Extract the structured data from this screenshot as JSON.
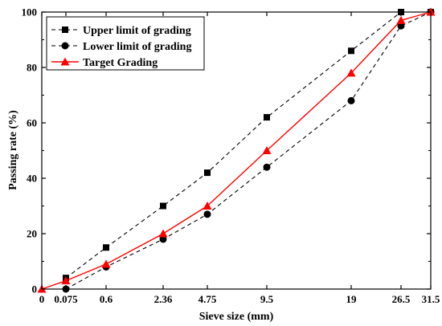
{
  "chart_data": {
    "type": "line",
    "xlabel": "Sieve size (mm)",
    "ylabel": "Passing rate (%)",
    "ylim": [
      0,
      100
    ],
    "yticks": [
      0,
      20,
      40,
      60,
      80,
      100
    ],
    "x": [
      "0",
      "0.075",
      "0.6",
      "2.36",
      "4.75",
      "9.5",
      "19",
      "26.5",
      "31.5"
    ],
    "grid": false,
    "legend_position": "top-left",
    "series": [
      {
        "name": "Upper limit of grading",
        "values": [
          null,
          4,
          15,
          30,
          42,
          62,
          86,
          100,
          100
        ],
        "color": "#000000",
        "line": "dashed",
        "marker": "square"
      },
      {
        "name": "Lower limit of grading",
        "values": [
          null,
          0,
          8,
          18,
          27,
          44,
          68,
          95,
          100
        ],
        "color": "#000000",
        "line": "dashed",
        "marker": "circle"
      },
      {
        "name": "Target Grading",
        "values": [
          0,
          3,
          9,
          20,
          30,
          50,
          78,
          97,
          100
        ],
        "color": "#ff0000",
        "line": "solid",
        "marker": "triangle"
      }
    ]
  }
}
